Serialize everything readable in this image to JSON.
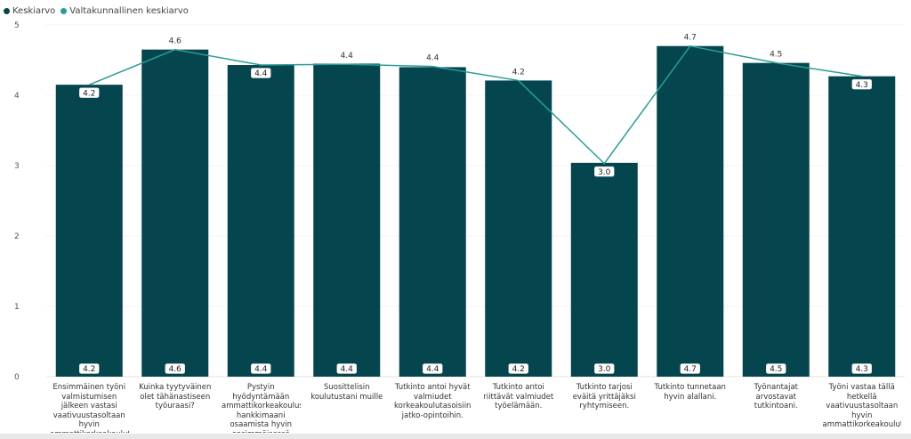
{
  "chart_data": {
    "type": "bar",
    "categories": [
      "Ensimmäinen työni valmistumisen jälkeen vastasi vaativuustasoltaan hyvin ammattikorkeakoulutus..",
      "Kuinka tyytyväinen olet tähänastiseen työuraasi?",
      "Pystyin hyödyntämään ammattikorkeakoulussa hankkimaani osaamista hyvin ensimmäisessä työssäni valmistumisen jälkeen.",
      "Suosittelisin koulutustani muille",
      "Tutkinto antoi hyvät valmiudet korkeakoulutasoisiin jatko-opintoihin.",
      "Tutkinto antoi riittävät valmiudet työelämään.",
      "Tutkinto tarjosi eväitä yrittäjäksi ryhtymiseen.",
      "Tutkinto tunnetaan hyvin alallani.",
      "Työnantajat arvostavat tutkintoani.",
      "Työni vastaa tällä hetkellä vaativuustasoltaan hyvin ammattikorkeakoulutus.."
    ],
    "series": [
      {
        "name": "Keskiarvo",
        "type": "bar",
        "color": "#05454e",
        "values": [
          4.15,
          4.65,
          4.43,
          4.45,
          4.4,
          4.21,
          3.04,
          4.7,
          4.46,
          4.27
        ],
        "labels": [
          "4.2",
          "4.6",
          "4.4",
          "4.4",
          "4.4",
          "4.2",
          "3.0",
          "4.7",
          "4.5",
          "4.3"
        ]
      },
      {
        "name": "Valtakunnallinen keskiarvo",
        "type": "line",
        "color": "#2a9d95",
        "values": [
          4.15,
          4.65,
          4.43,
          4.44,
          4.41,
          4.21,
          3.03,
          4.7,
          4.46,
          4.27
        ],
        "labels": [
          "4.2",
          "4.6",
          "4.4",
          "4.4",
          "4.4",
          "4.2",
          "3.0",
          "4.7",
          "4.5",
          "4.3"
        ]
      }
    ],
    "yticks": [
      0,
      1,
      2,
      3,
      4,
      5
    ],
    "ylim": [
      0,
      5
    ],
    "grid": true,
    "legend": "top-left"
  }
}
